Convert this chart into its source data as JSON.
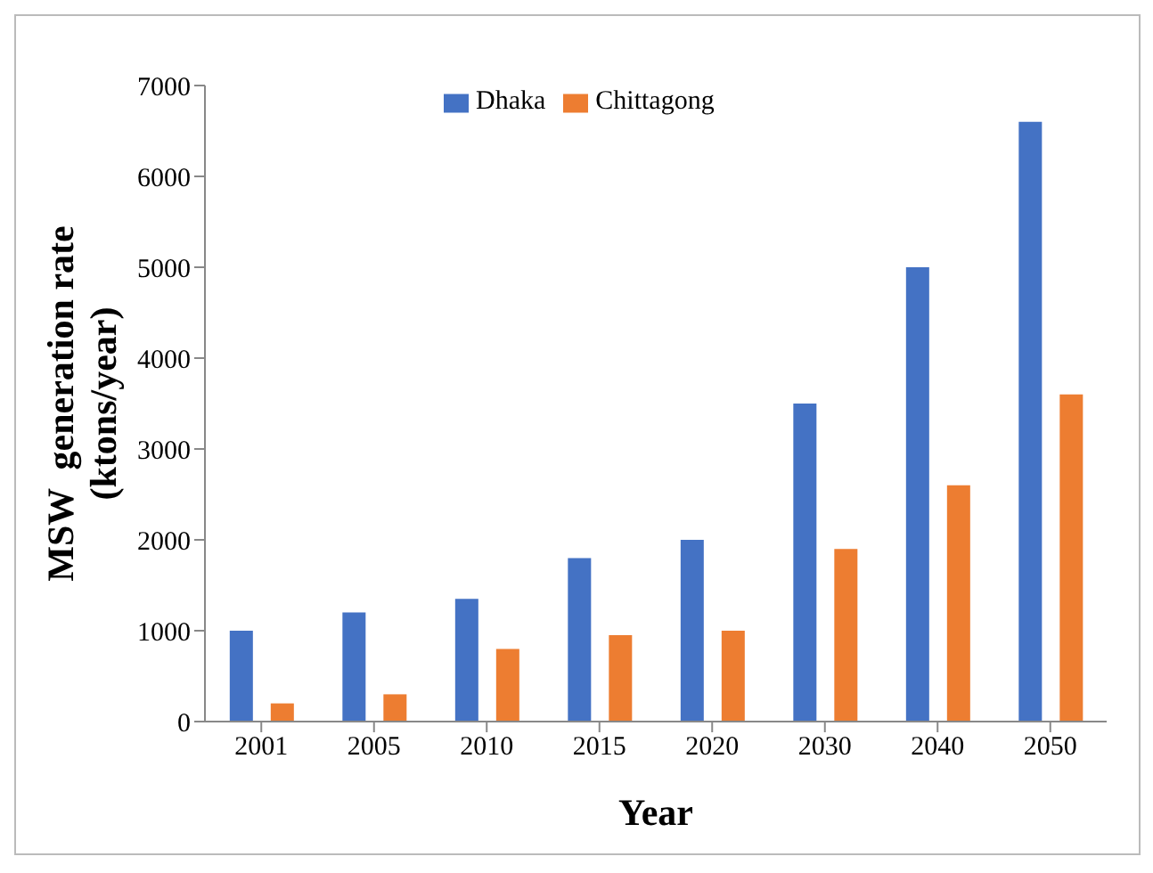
{
  "chart_data": {
    "type": "bar",
    "xlabel": "Year",
    "ylabel": "MSW  generation rate\n(ktons/year)",
    "categories": [
      "2001",
      "2005",
      "2010",
      "2015",
      "2020",
      "2030",
      "2040",
      "2050"
    ],
    "series": [
      {
        "name": "Dhaka",
        "color": "#4472c4",
        "values": [
          1000,
          1200,
          1350,
          1800,
          2000,
          3500,
          5000,
          6600
        ]
      },
      {
        "name": "Chittagong",
        "color": "#ed7d31",
        "values": [
          200,
          300,
          800,
          950,
          1000,
          1900,
          2600,
          3600
        ]
      }
    ],
    "ylim": [
      0,
      7000
    ],
    "yticks": [
      0,
      1000,
      2000,
      3000,
      4000,
      5000,
      6000,
      7000
    ],
    "legend": "top"
  }
}
